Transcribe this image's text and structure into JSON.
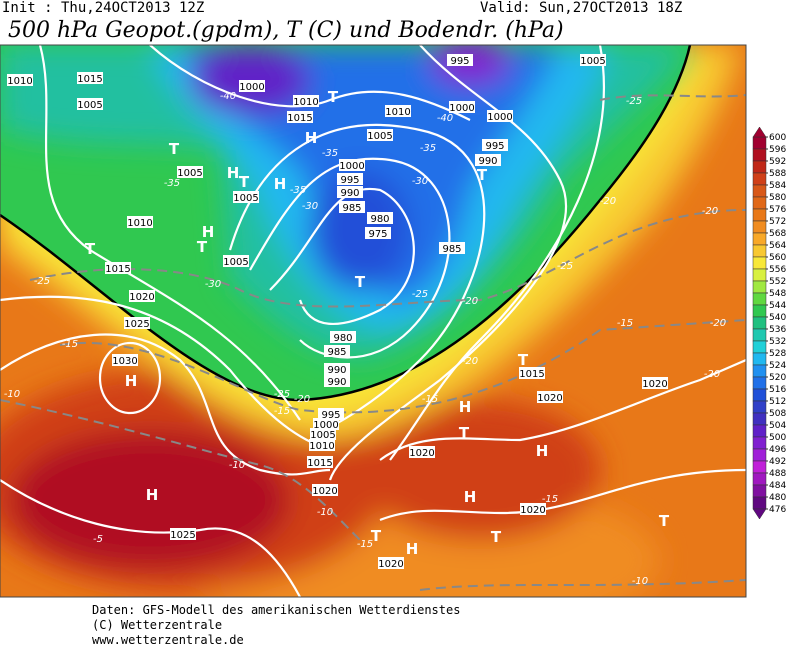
{
  "header": {
    "init": "Init : Thu,24OCT2013 12Z",
    "valid": "Valid: Sun,27OCT2013 18Z",
    "title": "500 hPa Geopot.(gpdm), T (C) und Bodendr. (hPa)"
  },
  "map": {
    "isobar_labels": [
      "1010",
      "1015",
      "1005",
      "1000",
      "1010",
      "1015",
      "1005",
      "1010",
      "1000",
      "995",
      "1005",
      "1000",
      "995",
      "990",
      "1000",
      "995",
      "990",
      "985",
      "980",
      "975",
      "985",
      "1005",
      "1005",
      "1010",
      "1005",
      "1015",
      "1020",
      "1025",
      "1030",
      "980",
      "985",
      "990",
      "990",
      "995",
      "1000",
      "1005",
      "1010",
      "1015",
      "1020",
      "1025",
      "1015",
      "1020",
      "1020",
      "1020",
      "1020",
      "1020"
    ],
    "temperature_labels": [
      "-40",
      "-40",
      "-35",
      "-35",
      "-35",
      "-35",
      "-30",
      "-30",
      "-30",
      "-25",
      "-25",
      "-25",
      "-20",
      "-20",
      "-20",
      "-20",
      "-20",
      "-20",
      "-15",
      "-15",
      "-15",
      "-15",
      "-15",
      "-15",
      "-10",
      "-10",
      "-10",
      "-10",
      "-5",
      "-20",
      "-25",
      "-25"
    ],
    "markers": [
      "H",
      "H",
      "H",
      "H",
      "H",
      "H",
      "H",
      "H",
      "H",
      "H",
      "T",
      "T",
      "T",
      "T",
      "T",
      "T",
      "T",
      "T",
      "T",
      "T",
      "T",
      "T"
    ]
  },
  "colorbar": {
    "ticks": [
      600,
      596,
      592,
      588,
      584,
      580,
      576,
      572,
      568,
      564,
      560,
      556,
      552,
      548,
      544,
      540,
      536,
      532,
      528,
      524,
      520,
      516,
      512,
      508,
      504,
      500,
      496,
      492,
      488,
      484,
      480,
      476
    ],
    "colors": [
      "#a00030",
      "#b01020",
      "#c02818",
      "#d04018",
      "#d85818",
      "#e06818",
      "#e87818",
      "#f08c20",
      "#f8a828",
      "#f8c830",
      "#f8e838",
      "#d8f040",
      "#a0e840",
      "#60d840",
      "#30c850",
      "#20c080",
      "#20c8b0",
      "#20d0d8",
      "#20b8f0",
      "#2090f0",
      "#2070e8",
      "#2050d8",
      "#3040c8",
      "#4030c0",
      "#6020c8",
      "#8020d0",
      "#a020d8",
      "#c020d8",
      "#a018c0",
      "#8010a0",
      "#600880"
    ]
  },
  "footer": [
    "Daten: GFS-Modell des amerikanischen Wetterdienstes",
    "(C) Wetterzentrale",
    "www.wetterzentrale.de"
  ]
}
